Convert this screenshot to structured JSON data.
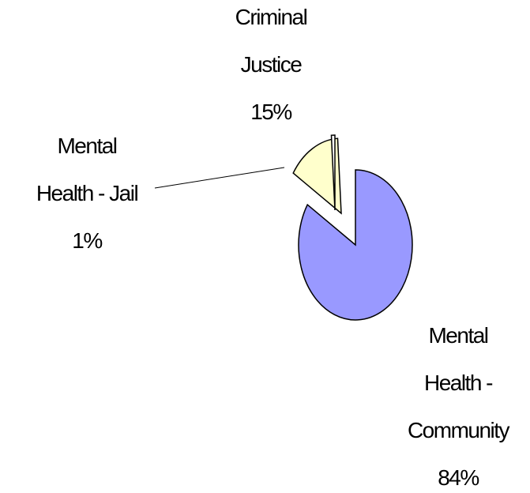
{
  "chart_data": {
    "type": "pie",
    "categories": [
      "Mental Health - Community",
      "Criminal Justice",
      "Mental Health - Jail"
    ],
    "values": [
      84,
      15,
      1
    ],
    "value_labels": [
      "84%",
      "15%",
      "1%"
    ],
    "colors": [
      "#9999ff",
      "#ffffcc",
      "#ffffff"
    ]
  }
}
